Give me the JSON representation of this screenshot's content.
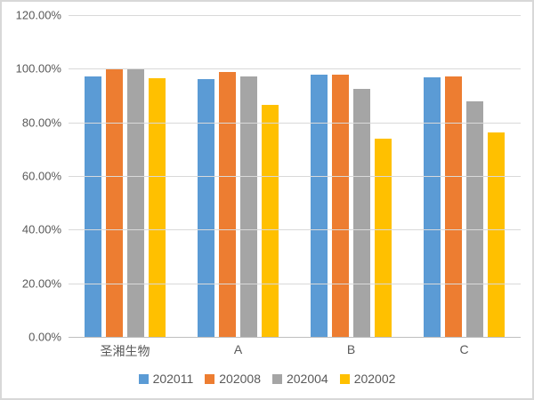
{
  "chart_data": {
    "type": "bar",
    "title": "",
    "xlabel": "",
    "ylabel": "",
    "categories": [
      "圣湘生物",
      "A",
      "B",
      "C"
    ],
    "series": [
      {
        "name": "202011",
        "color": "#5B9BD5",
        "values": [
          97.0,
          96.2,
          97.8,
          96.8
        ]
      },
      {
        "name": "202008",
        "color": "#ED7D31",
        "values": [
          100.0,
          98.8,
          97.8,
          97.0
        ]
      },
      {
        "name": "202004",
        "color": "#A5A5A5",
        "values": [
          100.0,
          97.1,
          92.5,
          88.0
        ]
      },
      {
        "name": "202002",
        "color": "#FFC000",
        "values": [
          96.5,
          86.4,
          73.8,
          76.4
        ]
      }
    ],
    "ylim": [
      0,
      120
    ],
    "y_ticks": [
      {
        "value": 0,
        "label": "0.00%"
      },
      {
        "value": 20,
        "label": "20.00%"
      },
      {
        "value": 40,
        "label": "40.00%"
      },
      {
        "value": 60,
        "label": "60.00%"
      },
      {
        "value": 80,
        "label": "80.00%"
      },
      {
        "value": 100,
        "label": "100.00%"
      },
      {
        "value": 120,
        "label": "120.00%"
      }
    ],
    "grid": "horizontal",
    "legend_position": "bottom"
  },
  "colors": {
    "gridline": "#D9D9D9",
    "axis_line": "#BFBFBF",
    "text": "#595959",
    "frame_border": "#D8D8D8",
    "background": "#FFFFFF"
  }
}
